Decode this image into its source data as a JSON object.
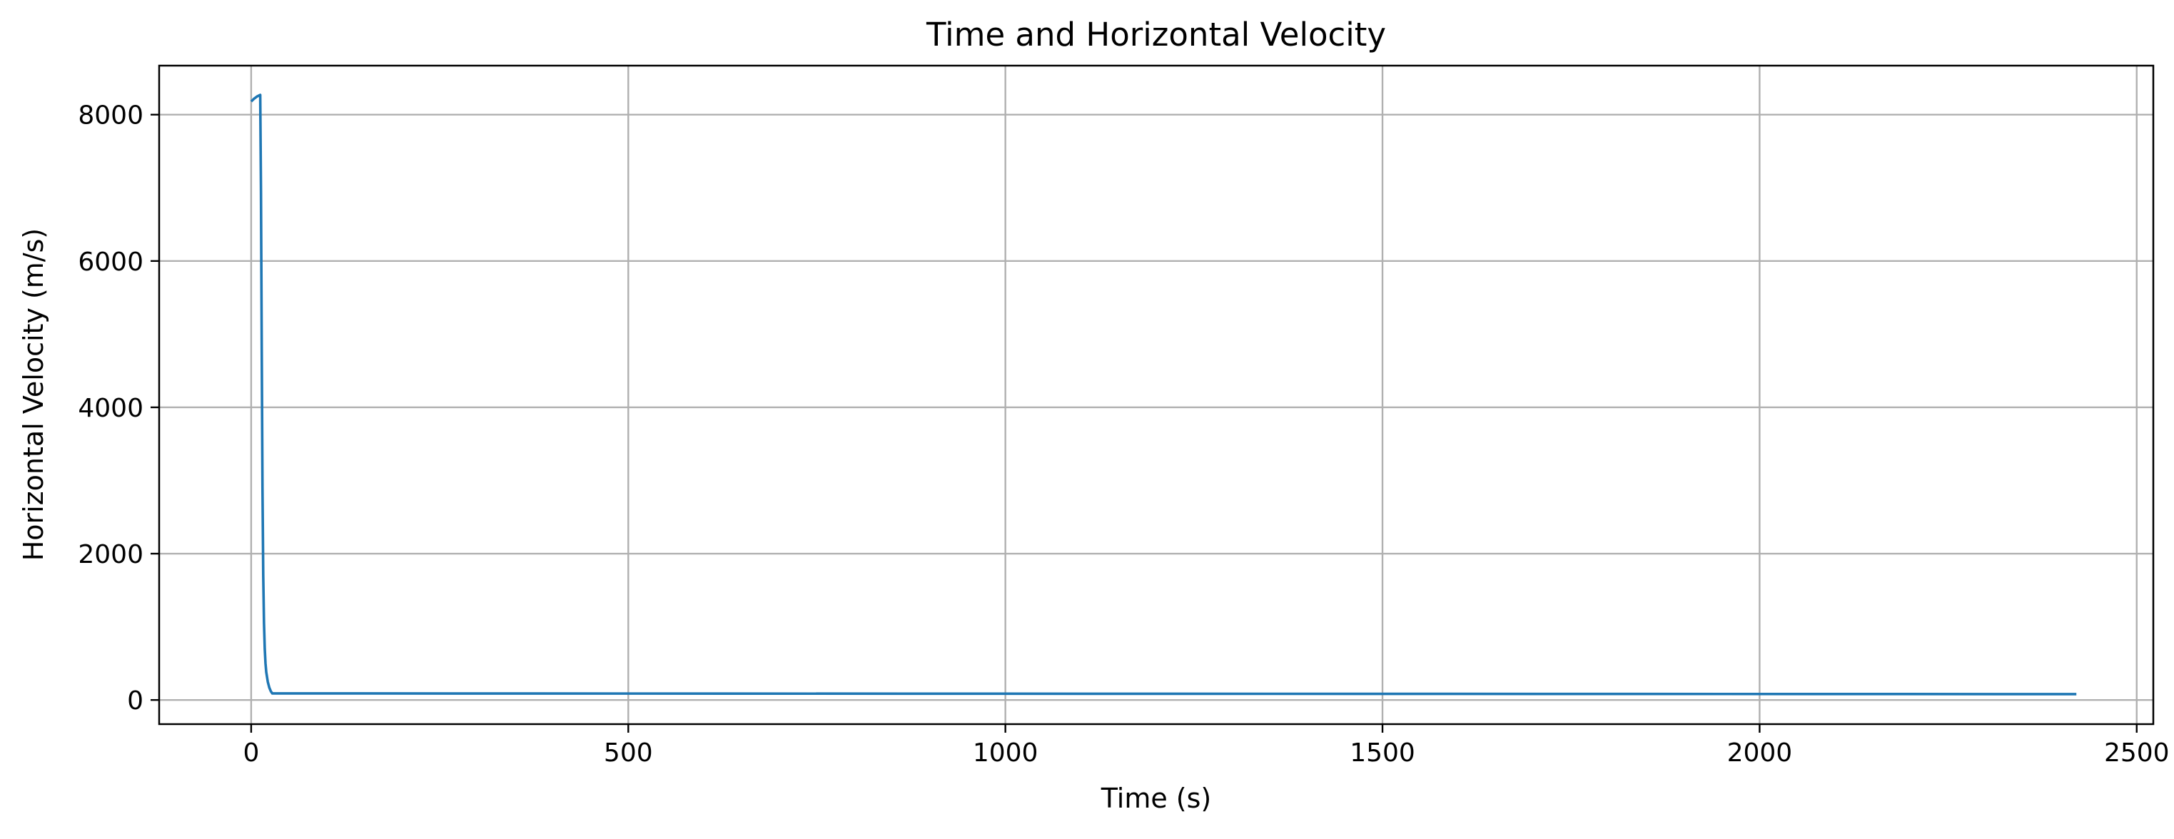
{
  "chart_data": {
    "type": "line",
    "title": "Time and Horizontal Velocity",
    "xlabel": "Time (s)",
    "ylabel": "Horizontal Velocity (m/s)",
    "xlim": [
      -122,
      2522
    ],
    "ylim": [
      -330,
      8670
    ],
    "xticks": [
      0,
      500,
      1000,
      1500,
      2000,
      2500
    ],
    "yticks": [
      0,
      2000,
      4000,
      6000,
      8000
    ],
    "grid": true,
    "series": [
      {
        "color": "#1f77b4",
        "x": [
          0,
          4,
          8,
          12,
          13,
          14,
          15,
          16,
          17,
          18,
          19,
          20,
          22,
          24,
          26,
          28,
          2420
        ],
        "y": [
          8180,
          8220,
          8250,
          8270,
          6950,
          4800,
          2900,
          1700,
          1050,
          700,
          500,
          380,
          250,
          170,
          120,
          90,
          80
        ]
      }
    ]
  }
}
